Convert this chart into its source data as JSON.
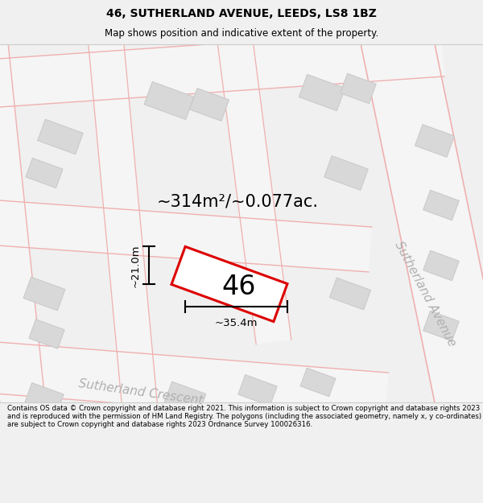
{
  "title": "46, SUTHERLAND AVENUE, LEEDS, LS8 1BZ",
  "subtitle": "Map shows position and indicative extent of the property.",
  "area_label": "~314m²/~0.077ac.",
  "property_number": "46",
  "dim_width": "~35.4m",
  "dim_height": "~21.0m",
  "street_label_1": "Sutherland Avenue",
  "street_label_2": "Sutherland Crescent",
  "footer": "Contains OS data © Crown copyright and database right 2021. This information is subject to Crown copyright and database rights 2023 and is reproduced with the permission of HM Land Registry. The polygons (including the associated geometry, namely x, y co-ordinates) are subject to Crown copyright and database rights 2023 Ordnance Survey 100026316.",
  "bg_color": "#f0f0f0",
  "map_bg": "#ffffff",
  "road_fill": "#e8e8e8",
  "building_fill": "#d8d8d8",
  "property_edge_color": "#dd0000",
  "property_fill": "#ffffff",
  "road_outline_color": "#f0a0a0",
  "light_red": "#f0b0b0",
  "title_fontsize": 10,
  "subtitle_fontsize": 8.5,
  "footer_fontsize": 6.2,
  "area_fontsize": 15,
  "number_fontsize": 24,
  "street_fontsize": 11,
  "dim_fontsize": 9.5
}
